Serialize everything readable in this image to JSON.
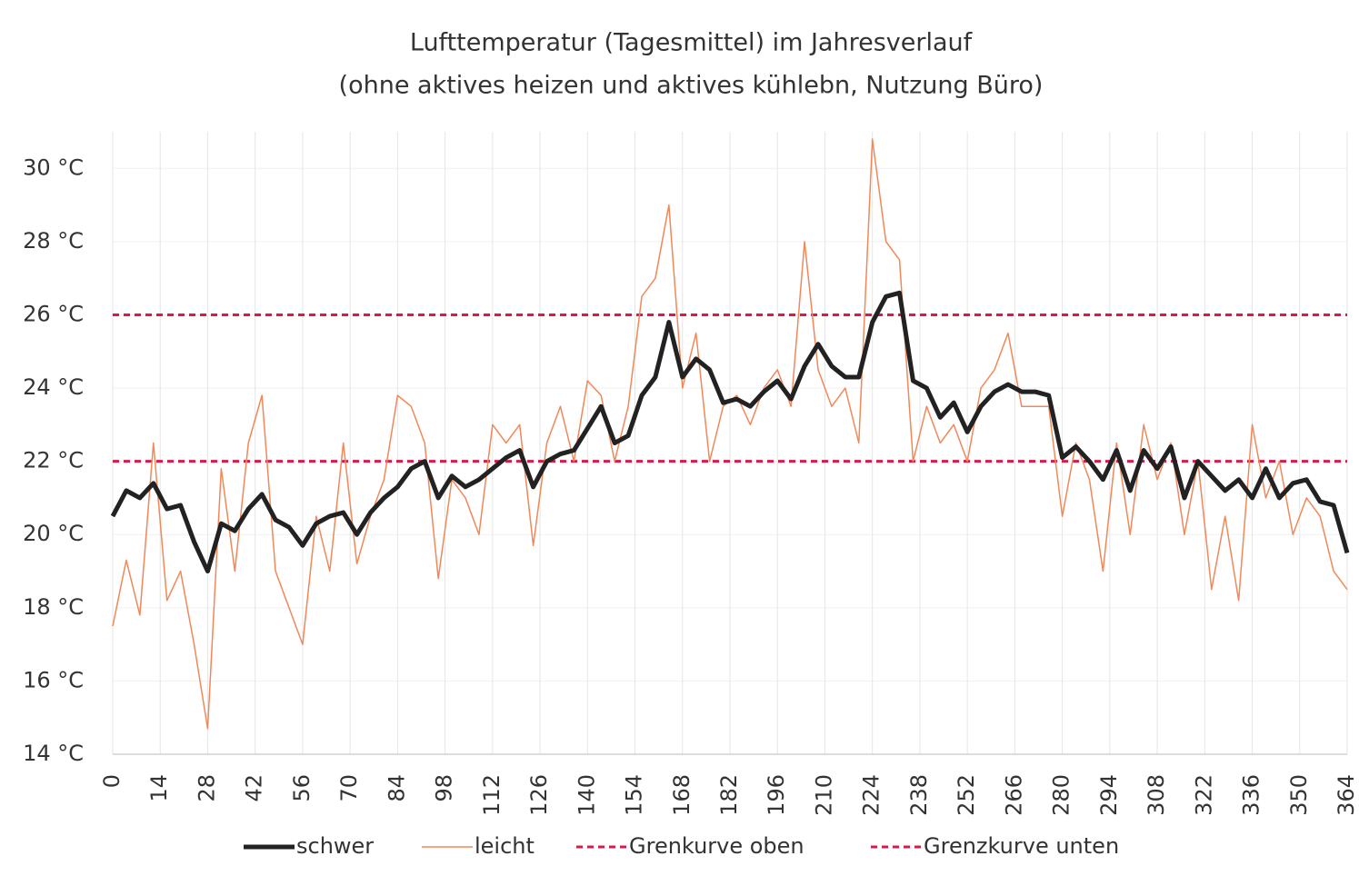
{
  "chart_data": {
    "type": "line",
    "title": "Lufttemperatur (Tagesmittel) im Jahresverlauf",
    "subtitle": "(ohne aktives heizen und aktives kühlebn, Nutzung Büro)",
    "x": [
      0,
      4,
      8,
      12,
      16,
      20,
      24,
      28,
      32,
      36,
      40,
      44,
      48,
      52,
      56,
      60,
      64,
      68,
      72,
      76,
      80,
      84,
      88,
      92,
      96,
      100,
      104,
      108,
      112,
      116,
      120,
      124,
      128,
      132,
      136,
      140,
      144,
      148,
      152,
      156,
      160,
      164,
      168,
      172,
      176,
      180,
      184,
      188,
      192,
      196,
      200,
      204,
      208,
      212,
      216,
      220,
      224,
      228,
      232,
      236,
      240,
      244,
      248,
      252,
      256,
      260,
      264,
      268,
      272,
      276,
      280,
      284,
      288,
      292,
      296,
      300,
      304,
      308,
      312,
      316,
      320,
      324,
      328,
      332,
      336,
      340,
      344,
      348,
      352,
      356,
      360,
      364
    ],
    "series": [
      {
        "name": "schwer",
        "color": "#222222",
        "width": 5,
        "values": [
          20.5,
          21.2,
          21.0,
          21.4,
          20.7,
          20.8,
          19.8,
          19.0,
          20.3,
          20.1,
          20.7,
          21.1,
          20.4,
          20.2,
          19.7,
          20.3,
          20.5,
          20.6,
          20.0,
          20.6,
          21.0,
          21.3,
          21.8,
          22.0,
          21.0,
          21.6,
          21.3,
          21.5,
          21.8,
          22.1,
          22.3,
          21.3,
          22.0,
          22.2,
          22.3,
          22.9,
          23.5,
          22.5,
          22.7,
          23.8,
          24.3,
          25.8,
          24.3,
          24.8,
          24.5,
          23.6,
          23.7,
          23.5,
          23.9,
          24.2,
          23.7,
          24.6,
          25.2,
          24.6,
          24.3,
          24.3,
          25.8,
          26.5,
          26.6,
          24.2,
          24.0,
          23.2,
          23.6,
          22.8,
          23.5,
          23.9,
          24.1,
          23.9,
          23.9,
          23.8,
          22.1,
          22.4,
          22.0,
          21.5,
          22.3,
          21.2,
          22.3,
          21.8,
          22.4,
          21.0,
          22.0,
          21.6,
          21.2,
          21.5,
          21.0,
          21.8,
          21.0,
          21.4,
          21.5,
          20.9,
          20.8,
          19.5
        ]
      },
      {
        "name": "leicht",
        "color": "#f0885a",
        "width": 1.5,
        "values": [
          17.5,
          19.3,
          17.8,
          22.5,
          18.2,
          19.0,
          17.0,
          14.7,
          21.8,
          19.0,
          22.5,
          23.8,
          19.0,
          18.0,
          17.0,
          20.5,
          19.0,
          22.5,
          19.2,
          20.5,
          21.5,
          23.8,
          23.5,
          22.5,
          18.8,
          21.5,
          21.0,
          20.0,
          23.0,
          22.5,
          23.0,
          19.7,
          22.5,
          23.5,
          22.0,
          24.2,
          23.8,
          22.0,
          23.5,
          26.5,
          27.0,
          29.0,
          24.0,
          25.5,
          22.0,
          23.5,
          23.8,
          23.0,
          24.0,
          24.5,
          23.5,
          28.0,
          24.5,
          23.5,
          24.0,
          22.5,
          30.8,
          28.0,
          27.5,
          22.0,
          23.5,
          22.5,
          23.0,
          22.0,
          24.0,
          24.5,
          25.5,
          23.5,
          23.5,
          23.5,
          20.5,
          22.5,
          21.5,
          19.0,
          22.5,
          20.0,
          23.0,
          21.5,
          22.5,
          20.0,
          22.0,
          18.5,
          20.5,
          18.2,
          23.0,
          21.0,
          22.0,
          20.0,
          21.0,
          20.5,
          19.0,
          18.5
        ]
      },
      {
        "name": "Grenkurve oben",
        "color": "#d41c48",
        "width": 3,
        "dashed": true,
        "x": [
          0,
          364
        ],
        "values": [
          26,
          26
        ]
      },
      {
        "name": "Grenzkurve unten",
        "color": "#d41c48",
        "width": 3,
        "dashed": true,
        "x": [
          0,
          364
        ],
        "values": [
          22,
          22
        ]
      }
    ],
    "xlim": [
      0,
      364
    ],
    "xticks": [
      0,
      14,
      28,
      42,
      56,
      70,
      84,
      98,
      112,
      126,
      140,
      154,
      168,
      182,
      196,
      210,
      224,
      238,
      252,
      266,
      280,
      294,
      308,
      322,
      336,
      350,
      364
    ],
    "ylim": [
      14,
      31
    ],
    "yticks": [
      {
        "value": 14,
        "label": "14 °C"
      },
      {
        "value": 16,
        "label": "16 °C"
      },
      {
        "value": 18,
        "label": "18 °C"
      },
      {
        "value": 20,
        "label": "20 °C"
      },
      {
        "value": 22,
        "label": "22 °C"
      },
      {
        "value": 24,
        "label": "24 °C"
      },
      {
        "value": 26,
        "label": "26 °C"
      },
      {
        "value": 28,
        "label": "28 °C"
      },
      {
        "value": 30,
        "label": "30 °C"
      }
    ],
    "grid": true,
    "legend": "bottom"
  }
}
